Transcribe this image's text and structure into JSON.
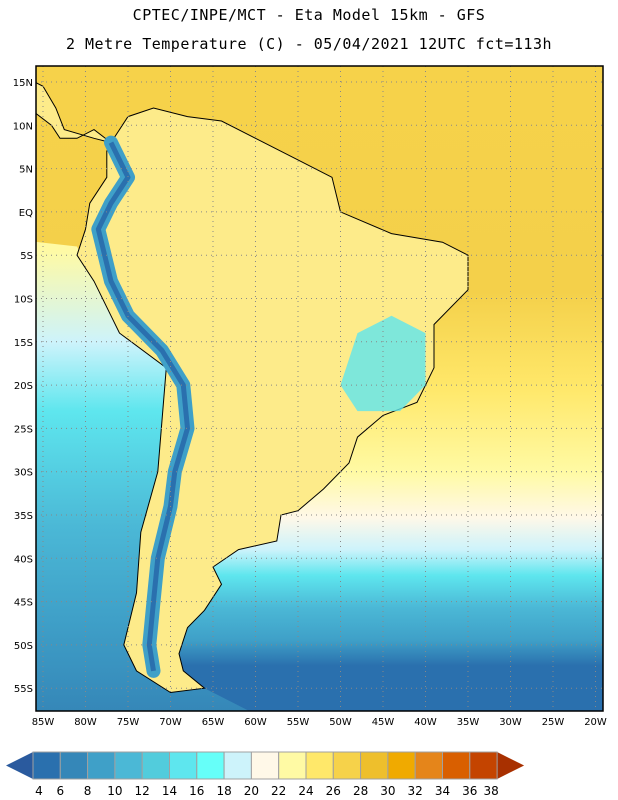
{
  "header": {
    "line1": "CPTEC/INPE/MCT -  Eta Model 15km - GFS",
    "line2": "2 Metre Temperature (C) - 05/04/2021 12UTC fct=113h"
  },
  "map": {
    "lat_labels": [
      "15N",
      "10N",
      "5N",
      "EQ",
      "5S",
      "10S",
      "15S",
      "20S",
      "25S",
      "30S",
      "35S",
      "40S",
      "45S",
      "50S",
      "55S"
    ],
    "lat_values": [
      15,
      10,
      5,
      0,
      -5,
      -10,
      -15,
      -20,
      -25,
      -30,
      -35,
      -40,
      -45,
      -50,
      -55
    ],
    "lon_labels": [
      "85W",
      "80W",
      "75W",
      "70W",
      "65W",
      "60W",
      "55W",
      "50W",
      "45W",
      "40W",
      "35W",
      "30W",
      "25W",
      "20W"
    ],
    "lon_values": [
      -85,
      -80,
      -75,
      -70,
      -65,
      -60,
      -55,
      -50,
      -45,
      -40,
      -35,
      -30,
      -25,
      -20
    ]
  },
  "colorbar": {
    "labels": [
      "4",
      "6",
      "8",
      "10",
      "12",
      "14",
      "16",
      "18",
      "20",
      "22",
      "24",
      "26",
      "28",
      "30",
      "32",
      "34",
      "36",
      "38"
    ],
    "colors": [
      "#2a70ae",
      "#3587b8",
      "#3fa0c8",
      "#4bb8d6",
      "#52ccdc",
      "#5ee6ee",
      "#66fff9",
      "#cdf3fb",
      "#fff8e8",
      "#fffaa4",
      "#ffe86a",
      "#f6d24a",
      "#eebf2c",
      "#f0aa00",
      "#e5851a",
      "#d95f00",
      "#c44400"
    ],
    "below_color": "#2a5a9e",
    "above_color": "#a83000"
  }
}
